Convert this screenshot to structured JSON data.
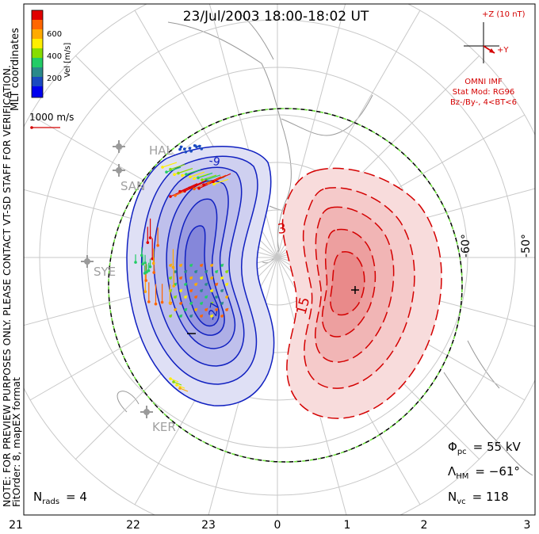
{
  "header": {
    "title": "23/Jul/2003 18:00-18:02 UT"
  },
  "colorbar": {
    "ticks": [
      "600",
      "400",
      "200"
    ],
    "unit_label": "Vel [m/s]",
    "colors": [
      "#e00000",
      "#ff6600",
      "#ffaa00",
      "#ffee00",
      "#88dd00",
      "#22cc66",
      "#2a8a8a",
      "#1a4ac0",
      "#0000ee"
    ]
  },
  "coord_label": "MLT coordinates",
  "ref_vector": {
    "label": "1000 m/s"
  },
  "note": {
    "line1": "NOTE: FOR PREVIEW PURPOSES ONLY. PLEASE CONTACT VT-SD STAFF FOR VERIFICATION.",
    "line2": "FitOrder: 8, mapEX format"
  },
  "imf": {
    "z_label": "+Z (10 nT)",
    "y_label": "+Y",
    "source": "OMNI IMF",
    "model": "Stat Mod: RG96",
    "condition": "Bz-/By-, 4<BT<6"
  },
  "stations": [
    "HAL",
    "SAN",
    "SYE",
    "KER"
  ],
  "lat_labels": [
    "-60°",
    "-50°"
  ],
  "contour_labels": [
    "3",
    "15",
    "-27",
    "-9"
  ],
  "markers": {
    "neg": "−",
    "pos": "+"
  },
  "stats": {
    "phi_sym": "Φ",
    "phi_sub": "pc",
    "phi_val": "= 55 kV",
    "lam_sym": "Λ",
    "lam_sub": "HM",
    "lam_val": "= −61°",
    "nvc_sym": "N",
    "nvc_sub": "vc",
    "nvc_val": "= 118",
    "nrads_sym": "N",
    "nrads_sub": "rads",
    "nrads_val": "= 4"
  },
  "mlt_axis": [
    "21",
    "22",
    "23",
    "0",
    "1",
    "2",
    "3"
  ],
  "colors": {
    "neg_cell": "#2e2ed8",
    "pos_cell": "#e84a4a",
    "boundary_dash": "#66dd33"
  }
}
